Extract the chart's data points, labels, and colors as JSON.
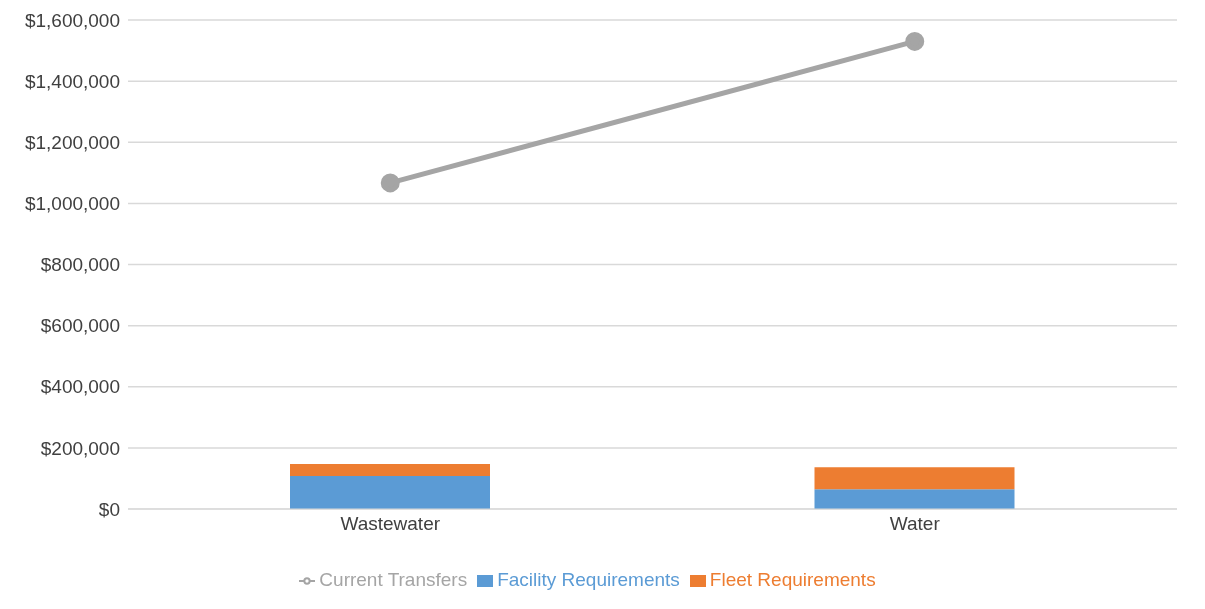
{
  "chart_data": {
    "type": "bar",
    "stacked": true,
    "categories": [
      "Wastewater",
      "Water"
    ],
    "series": [
      {
        "name": "Facility Requirements",
        "color": "#5b9bd5",
        "values": [
          108000,
          65000
        ]
      },
      {
        "name": "Fleet Requirements",
        "color": "#ed7d31",
        "values": [
          39000,
          72000
        ]
      },
      {
        "name": "Current Transfers",
        "type": "line",
        "color": "#a5a5a5",
        "marker": "circle",
        "values": [
          1067000,
          1530000
        ]
      }
    ],
    "ylim": [
      0,
      1600000
    ],
    "yticks": [
      {
        "value": 0,
        "label": "$0"
      },
      {
        "value": 200000,
        "label": "$200,000"
      },
      {
        "value": 400000,
        "label": "$400,000"
      },
      {
        "value": 600000,
        "label": "$600,000"
      },
      {
        "value": 800000,
        "label": "$800,000"
      },
      {
        "value": 1000000,
        "label": "$1,000,000"
      },
      {
        "value": 1200000,
        "label": "$1,200,000"
      },
      {
        "value": 1400000,
        "label": "$1,400,000"
      },
      {
        "value": 1600000,
        "label": "$1,600,000"
      }
    ],
    "grid": "y",
    "legend": "bottom"
  }
}
